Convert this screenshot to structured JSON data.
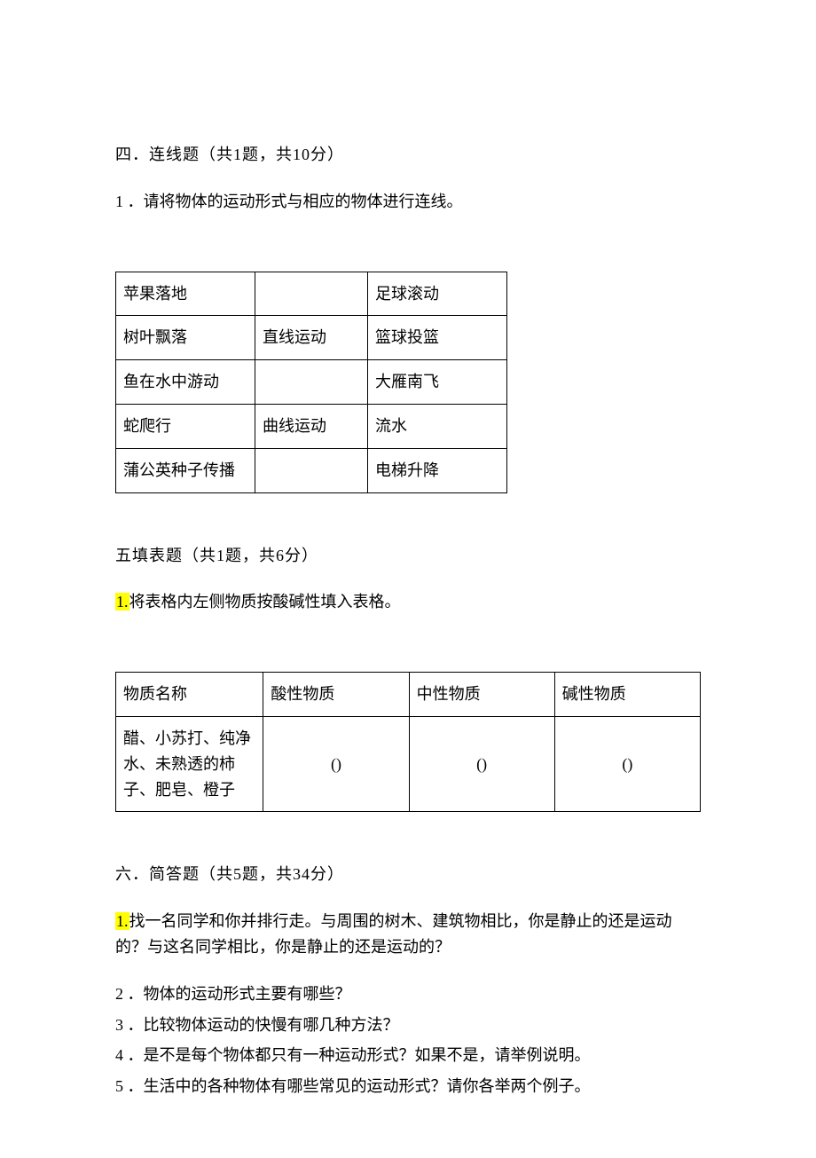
{
  "colors": {
    "text": "#000000",
    "background": "#ffffff",
    "highlight": "#ffff00",
    "table_border": "#000000"
  },
  "typography": {
    "body_fontsize_pt": 14,
    "font_family": "SimSun"
  },
  "section4": {
    "heading": "四．连线题（共1题，共10分）",
    "q1_label": "1 ．请将物体的运动形式与相应的物体进行连线。",
    "table": {
      "type": "table",
      "col_count": 3,
      "row_count": 5,
      "rows": [
        {
          "left": "苹果落地",
          "mid": "",
          "right": "足球滚动"
        },
        {
          "left": "树叶飘落",
          "mid": "直线运动",
          "right": "篮球投篮"
        },
        {
          "left": "鱼在水中游动",
          "mid": "",
          "right": "大雁南飞"
        },
        {
          "left": "蛇爬行",
          "mid": "曲线运动",
          "right": "流水"
        },
        {
          "left": "蒲公英种子传播",
          "mid": "",
          "right": "电梯升降"
        }
      ]
    }
  },
  "section5": {
    "heading": "五填表题（共1题，共6分）",
    "q1_num_hl": "1.",
    "q1_text": "将表格内左侧物质按酸碱性填入表格。",
    "table": {
      "type": "table",
      "header": {
        "c1": "物质名称",
        "c2": "酸性物质",
        "c3": "中性物质",
        "c4": "碱性物质"
      },
      "row": {
        "c1": "醋、小苏打、纯净水、未熟透的柿子、肥皂、橙子",
        "c2": "()",
        "c3": "()",
        "c4": "()"
      }
    }
  },
  "section6": {
    "heading": "六．简答题（共5题，共34分）",
    "q1_num_hl": "1.",
    "q1_text": "找一名同学和你并排行走。与周围的树木、建筑物相比，你是静止的还是运动的？与这名同学相比，你是静止的还是运动的？",
    "q2": "2 ．物体的运动形式主要有哪些？",
    "q3": "3 ．比较物体运动的快慢有哪几种方法？",
    "q4": "4 ．是不是每个物体都只有一种运动形式？如果不是，请举例说明。",
    "q5": "5 ．生活中的各种物体有哪些常见的运动形式？请你各举两个例子。"
  }
}
